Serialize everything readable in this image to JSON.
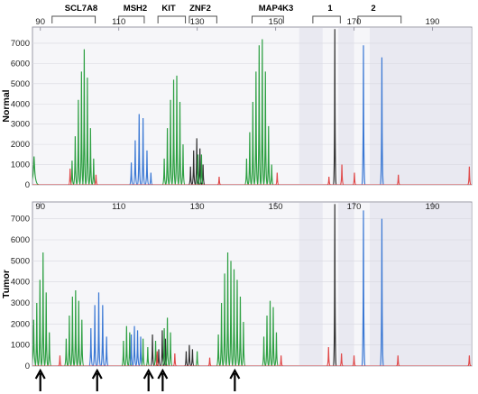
{
  "colors": {
    "green": "#2ea043",
    "blue": "#3a78d4",
    "black": "#303030",
    "red": "#e04848",
    "frame": "#9a9aa6",
    "plot_bg": "#f6f6f9",
    "band": "#e4e4ee"
  },
  "chart_data": {
    "type": "line",
    "x_ticks": [
      90,
      110,
      130,
      150,
      170,
      190
    ],
    "y_ticks": [
      0,
      1000,
      2000,
      3000,
      4000,
      5000,
      6000,
      7000
    ],
    "xlim": [
      88,
      200
    ],
    "ylim": [
      0,
      7800
    ],
    "markers": [
      "SCL7A8",
      "MSH2",
      "KIT",
      "ZNF2",
      "MAP4K3",
      "1",
      "2"
    ],
    "panels": [
      {
        "label": "Normal",
        "peaks": [
          {
            "color": "green",
            "x": 88.4,
            "y": 1400,
            "w": 1.2
          },
          {
            "color": "green",
            "x": 98.1,
            "y": 1200
          },
          {
            "color": "green",
            "x": 98.9,
            "y": 2400
          },
          {
            "color": "green",
            "x": 99.7,
            "y": 4200
          },
          {
            "color": "green",
            "x": 100.5,
            "y": 5600
          },
          {
            "color": "green",
            "x": 101.2,
            "y": 6700
          },
          {
            "color": "green",
            "x": 102.0,
            "y": 5300
          },
          {
            "color": "green",
            "x": 102.8,
            "y": 2800
          },
          {
            "color": "green",
            "x": 103.6,
            "y": 1300
          },
          {
            "color": "red",
            "x": 97.6,
            "y": 800
          },
          {
            "color": "red",
            "x": 104.2,
            "y": 500
          },
          {
            "color": "blue",
            "x": 113.2,
            "y": 1100
          },
          {
            "color": "blue",
            "x": 114.2,
            "y": 2200
          },
          {
            "color": "blue",
            "x": 115.2,
            "y": 3500
          },
          {
            "color": "blue",
            "x": 116.2,
            "y": 3300
          },
          {
            "color": "blue",
            "x": 117.2,
            "y": 1700
          },
          {
            "color": "blue",
            "x": 118.2,
            "y": 600
          },
          {
            "color": "green",
            "x": 121.6,
            "y": 1300
          },
          {
            "color": "green",
            "x": 122.4,
            "y": 2800
          },
          {
            "color": "green",
            "x": 123.2,
            "y": 4200
          },
          {
            "color": "green",
            "x": 124.0,
            "y": 5200
          },
          {
            "color": "green",
            "x": 124.8,
            "y": 5400
          },
          {
            "color": "green",
            "x": 125.6,
            "y": 4100
          },
          {
            "color": "green",
            "x": 126.4,
            "y": 2000
          },
          {
            "color": "black",
            "x": 128.3,
            "y": 900
          },
          {
            "color": "black",
            "x": 129.1,
            "y": 1700
          },
          {
            "color": "black",
            "x": 129.9,
            "y": 2300
          },
          {
            "color": "black",
            "x": 130.7,
            "y": 1800
          },
          {
            "color": "black",
            "x": 131.5,
            "y": 1000
          },
          {
            "color": "green",
            "x": 130.2,
            "y": 1500
          },
          {
            "color": "green",
            "x": 131.1,
            "y": 1500
          },
          {
            "color": "red",
            "x": 135.6,
            "y": 400
          },
          {
            "color": "green",
            "x": 142.6,
            "y": 1300
          },
          {
            "color": "green",
            "x": 143.4,
            "y": 2600
          },
          {
            "color": "green",
            "x": 144.2,
            "y": 4100
          },
          {
            "color": "green",
            "x": 145.0,
            "y": 5600
          },
          {
            "color": "green",
            "x": 145.8,
            "y": 6900
          },
          {
            "color": "green",
            "x": 146.6,
            "y": 7200
          },
          {
            "color": "green",
            "x": 147.4,
            "y": 5600
          },
          {
            "color": "green",
            "x": 148.2,
            "y": 2900
          },
          {
            "color": "green",
            "x": 149.0,
            "y": 1000
          },
          {
            "color": "red",
            "x": 150.4,
            "y": 600
          },
          {
            "color": "black",
            "x": 165.1,
            "y": 7700,
            "w": 0.35
          },
          {
            "color": "red",
            "x": 166.9,
            "y": 1000
          },
          {
            "color": "red",
            "x": 163.6,
            "y": 400
          },
          {
            "color": "blue",
            "x": 172.4,
            "y": 6900,
            "w": 0.4
          },
          {
            "color": "blue",
            "x": 177.1,
            "y": 6300,
            "w": 0.4
          },
          {
            "color": "red",
            "x": 170.1,
            "y": 600
          },
          {
            "color": "red",
            "x": 181.3,
            "y": 500
          },
          {
            "color": "red",
            "x": 199.4,
            "y": 900
          }
        ]
      },
      {
        "label": "Tumor",
        "peaks": [
          {
            "color": "green",
            "x": 88.3,
            "y": 2200,
            "w": 0.6
          },
          {
            "color": "green",
            "x": 89.1,
            "y": 3000
          },
          {
            "color": "green",
            "x": 89.9,
            "y": 4100
          },
          {
            "color": "green",
            "x": 90.7,
            "y": 5400
          },
          {
            "color": "green",
            "x": 91.5,
            "y": 3500
          },
          {
            "color": "green",
            "x": 92.3,
            "y": 1600
          },
          {
            "color": "green",
            "x": 96.6,
            "y": 1300
          },
          {
            "color": "green",
            "x": 97.4,
            "y": 2400
          },
          {
            "color": "green",
            "x": 98.2,
            "y": 3300
          },
          {
            "color": "green",
            "x": 99.0,
            "y": 3600
          },
          {
            "color": "green",
            "x": 99.8,
            "y": 3100
          },
          {
            "color": "green",
            "x": 100.6,
            "y": 2200
          },
          {
            "color": "blue",
            "x": 102.9,
            "y": 1800
          },
          {
            "color": "blue",
            "x": 103.9,
            "y": 2900
          },
          {
            "color": "blue",
            "x": 104.9,
            "y": 3500
          },
          {
            "color": "blue",
            "x": 105.9,
            "y": 2900
          },
          {
            "color": "blue",
            "x": 106.9,
            "y": 1400
          },
          {
            "color": "red",
            "x": 95.0,
            "y": 500
          },
          {
            "color": "green",
            "x": 111.2,
            "y": 1200
          },
          {
            "color": "green",
            "x": 112.0,
            "y": 1900
          },
          {
            "color": "green",
            "x": 112.8,
            "y": 1600
          },
          {
            "color": "blue",
            "x": 113.2,
            "y": 1500
          },
          {
            "color": "blue",
            "x": 114.0,
            "y": 1900
          },
          {
            "color": "blue",
            "x": 114.8,
            "y": 1700
          },
          {
            "color": "blue",
            "x": 115.6,
            "y": 1400
          },
          {
            "color": "green",
            "x": 116.2,
            "y": 1300
          },
          {
            "color": "green",
            "x": 117.4,
            "y": 900
          },
          {
            "color": "black",
            "x": 118.6,
            "y": 1500
          },
          {
            "color": "green",
            "x": 119.4,
            "y": 1200
          },
          {
            "color": "black",
            "x": 120.2,
            "y": 800
          },
          {
            "color": "black",
            "x": 121.1,
            "y": 1700
          },
          {
            "color": "black",
            "x": 121.9,
            "y": 1300
          },
          {
            "color": "green",
            "x": 121.6,
            "y": 1800
          },
          {
            "color": "green",
            "x": 122.4,
            "y": 2300
          },
          {
            "color": "green",
            "x": 123.2,
            "y": 1600
          },
          {
            "color": "red",
            "x": 119.8,
            "y": 700
          },
          {
            "color": "red",
            "x": 124.3,
            "y": 600
          },
          {
            "color": "black",
            "x": 127.2,
            "y": 700
          },
          {
            "color": "black",
            "x": 128.0,
            "y": 1000
          },
          {
            "color": "black",
            "x": 128.8,
            "y": 800
          },
          {
            "color": "green",
            "x": 130.0,
            "y": 700
          },
          {
            "color": "red",
            "x": 133.2,
            "y": 400
          },
          {
            "color": "green",
            "x": 135.4,
            "y": 1500
          },
          {
            "color": "green",
            "x": 136.2,
            "y": 3000
          },
          {
            "color": "green",
            "x": 137.0,
            "y": 4400
          },
          {
            "color": "green",
            "x": 137.8,
            "y": 5400
          },
          {
            "color": "green",
            "x": 138.6,
            "y": 5000
          },
          {
            "color": "green",
            "x": 139.4,
            "y": 4600
          },
          {
            "color": "green",
            "x": 140.2,
            "y": 4100
          },
          {
            "color": "green",
            "x": 141.0,
            "y": 3300
          },
          {
            "color": "green",
            "x": 141.8,
            "y": 2100
          },
          {
            "color": "green",
            "x": 147.0,
            "y": 1400
          },
          {
            "color": "green",
            "x": 147.8,
            "y": 2400
          },
          {
            "color": "green",
            "x": 148.6,
            "y": 3100
          },
          {
            "color": "green",
            "x": 149.4,
            "y": 2800
          },
          {
            "color": "green",
            "x": 150.2,
            "y": 1600
          },
          {
            "color": "red",
            "x": 151.4,
            "y": 500
          },
          {
            "color": "black",
            "x": 165.1,
            "y": 7700,
            "w": 0.35
          },
          {
            "color": "red",
            "x": 163.5,
            "y": 900
          },
          {
            "color": "red",
            "x": 166.8,
            "y": 600
          },
          {
            "color": "blue",
            "x": 172.4,
            "y": 7400,
            "w": 0.4
          },
          {
            "color": "blue",
            "x": 177.1,
            "y": 7000,
            "w": 0.4
          },
          {
            "color": "red",
            "x": 170.0,
            "y": 500
          },
          {
            "color": "red",
            "x": 181.2,
            "y": 500
          },
          {
            "color": "red",
            "x": 199.4,
            "y": 500
          }
        ]
      }
    ],
    "arrows_x": [
      90.0,
      104.5,
      117.6,
      121.2,
      139.6
    ]
  }
}
